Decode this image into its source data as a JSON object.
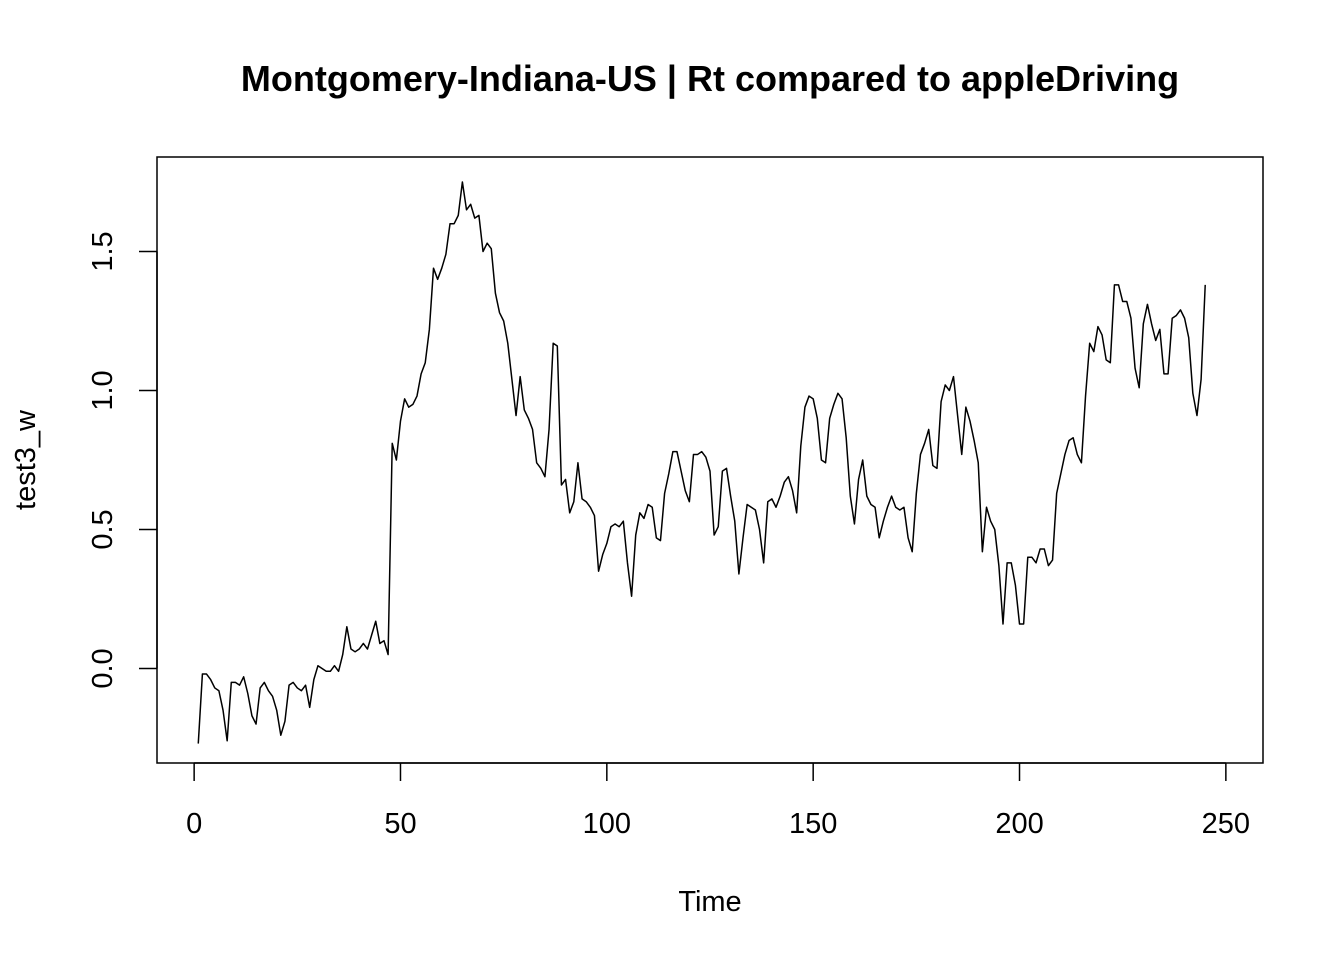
{
  "chart_data": {
    "type": "line",
    "title": "Montgomery-Indiana-US | Rt compared to appleDriving",
    "xlabel": "Time",
    "ylabel": "test3_w",
    "xlim": [
      -9,
      259
    ],
    "ylim": [
      -0.34,
      1.84
    ],
    "xticks": [
      0,
      50,
      100,
      150,
      200,
      250
    ],
    "yticks": [
      0.0,
      0.5,
      1.0,
      1.5
    ],
    "xtick_labels": [
      "0",
      "50",
      "100",
      "150",
      "200",
      "250"
    ],
    "ytick_labels": [
      "0.0",
      "0.5",
      "1.0",
      "1.5"
    ],
    "grid": false,
    "series": [
      {
        "x_start": 1,
        "color": "#000000",
        "values": [
          -0.27,
          -0.02,
          -0.02,
          -0.04,
          -0.07,
          -0.08,
          -0.15,
          -0.26,
          -0.05,
          -0.05,
          -0.06,
          -0.03,
          -0.09,
          -0.17,
          -0.2,
          -0.07,
          -0.05,
          -0.08,
          -0.1,
          -0.15,
          -0.24,
          -0.19,
          -0.06,
          -0.05,
          -0.07,
          -0.08,
          -0.06,
          -0.14,
          -0.04,
          0.01,
          0.0,
          -0.01,
          -0.01,
          0.01,
          -0.01,
          0.05,
          0.15,
          0.07,
          0.06,
          0.07,
          0.09,
          0.07,
          0.12,
          0.17,
          0.09,
          0.1,
          0.05,
          0.81,
          0.75,
          0.89,
          0.97,
          0.94,
          0.95,
          0.98,
          1.06,
          1.1,
          1.22,
          1.44,
          1.4,
          1.44,
          1.49,
          1.6,
          1.6,
          1.63,
          1.75,
          1.65,
          1.67,
          1.62,
          1.63,
          1.5,
          1.53,
          1.51,
          1.35,
          1.28,
          1.25,
          1.17,
          1.04,
          0.91,
          1.05,
          0.93,
          0.9,
          0.86,
          0.74,
          0.72,
          0.69,
          0.86,
          1.17,
          1.16,
          0.66,
          0.68,
          0.56,
          0.6,
          0.74,
          0.61,
          0.6,
          0.58,
          0.55,
          0.35,
          0.41,
          0.45,
          0.51,
          0.52,
          0.51,
          0.53,
          0.38,
          0.26,
          0.48,
          0.56,
          0.54,
          0.59,
          0.58,
          0.47,
          0.46,
          0.63,
          0.7,
          0.78,
          0.78,
          0.71,
          0.64,
          0.6,
          0.77,
          0.77,
          0.78,
          0.76,
          0.71,
          0.48,
          0.51,
          0.71,
          0.72,
          0.62,
          0.53,
          0.34,
          0.47,
          0.59,
          0.58,
          0.57,
          0.5,
          0.38,
          0.6,
          0.61,
          0.58,
          0.62,
          0.67,
          0.69,
          0.64,
          0.56,
          0.8,
          0.94,
          0.98,
          0.97,
          0.9,
          0.75,
          0.74,
          0.9,
          0.95,
          0.99,
          0.97,
          0.83,
          0.62,
          0.52,
          0.68,
          0.75,
          0.62,
          0.59,
          0.58,
          0.47,
          0.53,
          0.58,
          0.62,
          0.58,
          0.57,
          0.58,
          0.47,
          0.42,
          0.63,
          0.77,
          0.81,
          0.86,
          0.73,
          0.72,
          0.96,
          1.02,
          1.0,
          1.05,
          0.91,
          0.77,
          0.94,
          0.89,
          0.82,
          0.74,
          0.42,
          0.58,
          0.53,
          0.5,
          0.37,
          0.16,
          0.38,
          0.38,
          0.3,
          0.16,
          0.16,
          0.4,
          0.4,
          0.38,
          0.43,
          0.43,
          0.37,
          0.39,
          0.63,
          0.7,
          0.77,
          0.82,
          0.83,
          0.77,
          0.74,
          0.98,
          1.17,
          1.14,
          1.23,
          1.2,
          1.11,
          1.1,
          1.38,
          1.38,
          1.32,
          1.32,
          1.26,
          1.08,
          1.01,
          1.24,
          1.31,
          1.24,
          1.18,
          1.22,
          1.06,
          1.06,
          1.26,
          1.27,
          1.29,
          1.26,
          1.19,
          0.99,
          0.91,
          1.04,
          1.38
        ]
      }
    ]
  }
}
